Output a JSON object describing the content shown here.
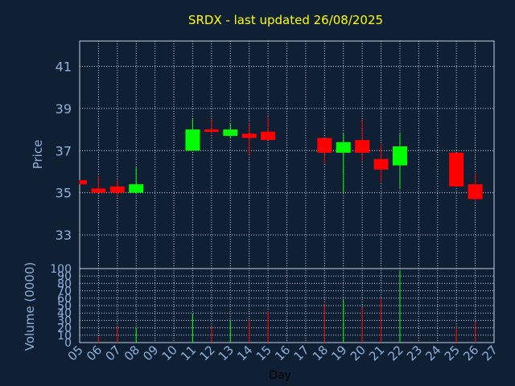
{
  "chart_data": {
    "type": "candlestick",
    "title": "SRDX - last updated 26/08/2025",
    "xlabel": "Day",
    "price_panel": {
      "ylabel": "Price",
      "ylim": [
        31.4,
        42.2
      ],
      "yticks": [
        "33",
        "35",
        "37",
        "39",
        "41"
      ],
      "grid": true
    },
    "volume_panel": {
      "ylabel": "Volume (0000)",
      "ylim": [
        0,
        100
      ],
      "yticks": [
        "0",
        "10",
        "20",
        "30",
        "40",
        "50",
        "60",
        "70",
        "80",
        "90",
        "100"
      ],
      "grid": true
    },
    "x_ticks": [
      "05",
      "06",
      "07",
      "08",
      "09",
      "10",
      "11",
      "12",
      "13",
      "14",
      "15",
      "16",
      "17",
      "18",
      "19",
      "20",
      "21",
      "22",
      "23",
      "24",
      "25",
      "26",
      "27"
    ],
    "candles": [
      {
        "day": "05",
        "open": 35.6,
        "high": 35.6,
        "low": 35.4,
        "close": 35.4,
        "volume": 0
      },
      {
        "day": "06",
        "open": 35.2,
        "high": 35.8,
        "low": 35.0,
        "close": 35.0,
        "volume": 8
      },
      {
        "day": "07",
        "open": 35.3,
        "high": 35.6,
        "low": 34.8,
        "close": 35.0,
        "volume": 22
      },
      {
        "day": "08",
        "open": 35.0,
        "high": 36.2,
        "low": 35.0,
        "close": 35.4,
        "volume": 20
      },
      {
        "day": "11",
        "open": 37.0,
        "high": 38.5,
        "low": 37.0,
        "close": 38.0,
        "volume": 38
      },
      {
        "day": "12",
        "open": 38.0,
        "high": 38.5,
        "low": 37.8,
        "close": 37.9,
        "volume": 22
      },
      {
        "day": "13",
        "open": 37.7,
        "high": 38.3,
        "low": 37.6,
        "close": 38.0,
        "volume": 30
      },
      {
        "day": "14",
        "open": 37.8,
        "high": 38.3,
        "low": 36.8,
        "close": 37.6,
        "volume": 30
      },
      {
        "day": "15",
        "open": 37.9,
        "high": 38.6,
        "low": 37.5,
        "close": 37.5,
        "volume": 42
      },
      {
        "day": "18",
        "open": 37.6,
        "high": 37.6,
        "low": 36.4,
        "close": 36.9,
        "volume": 53
      },
      {
        "day": "19",
        "open": 36.9,
        "high": 37.8,
        "low": 35.0,
        "close": 37.4,
        "volume": 58
      },
      {
        "day": "20",
        "open": 37.5,
        "high": 38.5,
        "low": 36.5,
        "close": 36.9,
        "volume": 48
      },
      {
        "day": "21",
        "open": 36.6,
        "high": 37.3,
        "low": 35.5,
        "close": 36.1,
        "volume": 60
      },
      {
        "day": "22",
        "open": 36.3,
        "high": 37.8,
        "low": 35.2,
        "close": 37.2,
        "volume": 98
      },
      {
        "day": "25",
        "open": 36.9,
        "high": 36.9,
        "low": 35.3,
        "close": 35.3,
        "volume": 20
      },
      {
        "day": "26",
        "open": 35.4,
        "high": 35.9,
        "low": 34.6,
        "close": 34.7,
        "volume": 28
      }
    ],
    "colors": {
      "background": "#0f2035",
      "grid": "#c8d0dc",
      "axis_text": "#8fb0d8",
      "title": "#ffff00",
      "up": "#00ff00",
      "down": "#ff0000"
    }
  }
}
